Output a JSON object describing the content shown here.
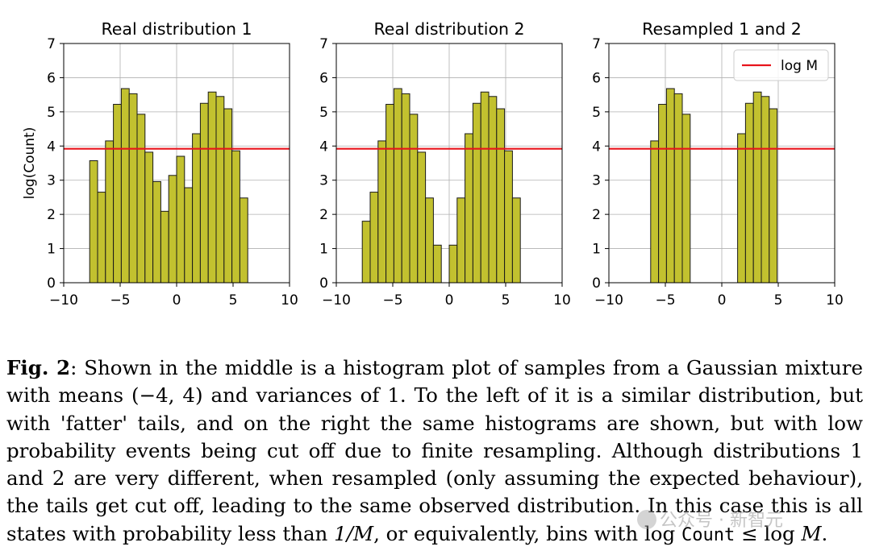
{
  "chart_data": [
    {
      "type": "bar",
      "title": "Real distribution 1",
      "ylabel": "log(Count)",
      "xlim": [
        -10,
        10
      ],
      "ylim": [
        0,
        7
      ],
      "xticks": [
        "−10",
        "−5",
        "0",
        "5",
        "10"
      ],
      "yticks": [
        "0",
        "1",
        "2",
        "3",
        "4",
        "5",
        "6",
        "7"
      ],
      "grid": true,
      "bin_width": 0.7,
      "bin_start": -7.7,
      "values": [
        3.57,
        2.65,
        4.15,
        5.22,
        5.68,
        5.53,
        4.93,
        3.82,
        2.96,
        2.09,
        3.14,
        3.7,
        2.78,
        4.36,
        5.25,
        5.58,
        5.45,
        5.09,
        3.86,
        2.48
      ],
      "threshold": 3.92,
      "bar_color": "#c2c12f",
      "line_color": "#e8141c"
    },
    {
      "type": "bar",
      "title": "Real distribution 2",
      "xlim": [
        -10,
        10
      ],
      "ylim": [
        0,
        7
      ],
      "xticks": [
        "−10",
        "−5",
        "0",
        "5",
        "10"
      ],
      "yticks": [
        "0",
        "1",
        "2",
        "3",
        "4",
        "5",
        "6",
        "7"
      ],
      "grid": true,
      "bin_width": 0.7,
      "bin_start": -7.7,
      "values": [
        1.8,
        2.65,
        4.15,
        5.22,
        5.68,
        5.53,
        4.93,
        3.82,
        2.48,
        1.1,
        0,
        1.1,
        2.48,
        4.36,
        5.25,
        5.58,
        5.45,
        5.09,
        3.86,
        2.48
      ],
      "threshold": 3.92,
      "bar_color": "#c2c12f",
      "line_color": "#e8141c"
    },
    {
      "type": "bar",
      "title": "Resampled 1 and 2",
      "xlim": [
        -10,
        10
      ],
      "ylim": [
        0,
        7
      ],
      "xticks": [
        "−10",
        "−5",
        "0",
        "5",
        "10"
      ],
      "yticks": [
        "0",
        "1",
        "2",
        "3",
        "4",
        "5",
        "6",
        "7"
      ],
      "grid": true,
      "bin_width": 0.7,
      "bin_start": -7.7,
      "values": [
        0,
        0,
        4.15,
        5.22,
        5.68,
        5.53,
        4.93,
        0,
        0,
        0,
        0,
        0,
        0,
        4.36,
        5.25,
        5.58,
        5.45,
        5.09,
        0,
        0
      ],
      "threshold": 3.92,
      "legend": {
        "label": "log M",
        "placement": "top-right"
      },
      "bar_color": "#c2c12f",
      "line_color": "#e8141c"
    }
  ],
  "caption": {
    "fig_label": "Fig. 2",
    "part1": ": Shown in the middle is a histogram plot of samples from a Gaussian mixture with means ",
    "means": "(−4, 4)",
    "part2": " and variances of 1. To the left of it is a similar distribution, but with 'fatter' tails, and on the right the same histograms are shown, but with low probability events being cut off due to finite resampling. Although distributions 1 and 2 are very different, when resampled (only assuming the expected behaviour), the tails get cut off, leading to the same observed distribution. In this case this is all states with probability less than ",
    "prob": "1/M",
    "part3": ", or equivalently, bins with log ",
    "count_word": "Count",
    "part4": " ≤ log ",
    "m": "M",
    "part5": "."
  },
  "watermark": "公众号 · 新智元"
}
